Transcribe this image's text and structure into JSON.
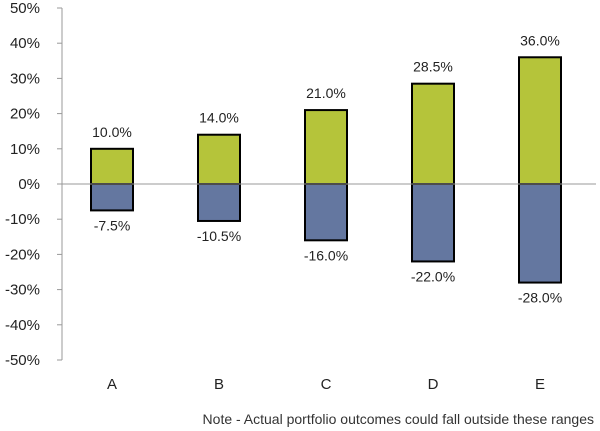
{
  "chart_data": {
    "type": "bar",
    "categories": [
      "A",
      "B",
      "C",
      "D",
      "E"
    ],
    "series": [
      {
        "values": [
          10.0,
          14.0,
          21.0,
          28.5,
          36.0
        ],
        "labels": [
          "10.0%",
          "14.0%",
          "21.0%",
          "28.5%",
          "36.0%"
        ],
        "color": "#b5c43a"
      },
      {
        "values": [
          -7.5,
          -10.5,
          -16.0,
          -22.0,
          -28.0
        ],
        "labels": [
          "-7.5%",
          "-10.5%",
          "-16.0%",
          "-22.0%",
          "-28.0%"
        ],
        "color": "#6477a0"
      }
    ],
    "yticks": [
      50,
      40,
      30,
      20,
      10,
      0,
      -10,
      -20,
      -30,
      -40,
      -50
    ],
    "ytick_labels": [
      "50%",
      "40%",
      "30%",
      "20%",
      "10%",
      "0%",
      "-10%",
      "-20%",
      "-30%",
      "-40%",
      "-50%"
    ],
    "ylim": [
      -50,
      50
    ],
    "grid": false,
    "legend": "none"
  },
  "note": "Note - Actual portfolio outcomes could fall outside these ranges"
}
